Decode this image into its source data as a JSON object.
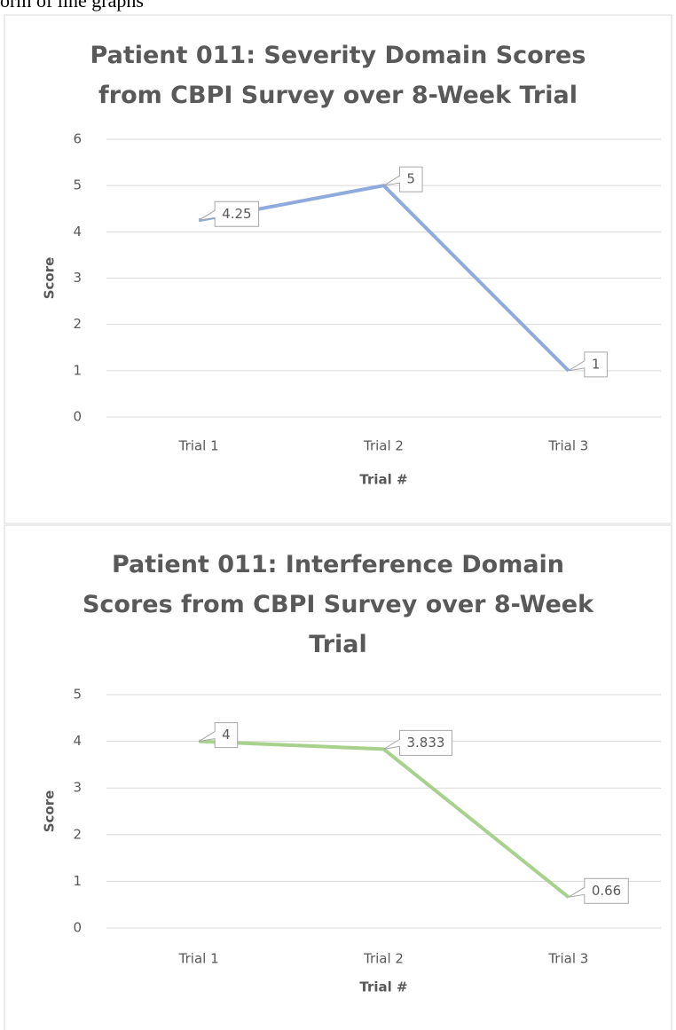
{
  "caption": "orm of line graphs",
  "chart_data": [
    {
      "type": "line",
      "title": "Patient 011: Severity Domain Scores from CBPI Survey over 8-Week Trial",
      "xlabel": "Trial #",
      "ylabel": "Score",
      "categories": [
        "Trial 1",
        "Trial 2",
        "Trial 3"
      ],
      "series": [
        {
          "name": "Severity",
          "color": "#8faadc",
          "values": [
            4.25,
            5,
            1
          ]
        }
      ],
      "ylim": [
        0,
        6
      ],
      "yticks": [
        0,
        1,
        2,
        3,
        4,
        5,
        6
      ],
      "grid": true
    },
    {
      "type": "line",
      "title": "Patient 011: Interference Domain Scores from CBPI Survey over 8-Week Trial",
      "xlabel": "Trial #",
      "ylabel": "Score",
      "categories": [
        "Trial 1",
        "Trial 2",
        "Trial 3"
      ],
      "series": [
        {
          "name": "Interference",
          "color": "#a9d18e",
          "values": [
            4,
            3.833,
            0.66
          ]
        }
      ],
      "ylim": [
        0,
        5
      ],
      "yticks": [
        0,
        1,
        2,
        3,
        4,
        5
      ],
      "grid": true
    }
  ]
}
